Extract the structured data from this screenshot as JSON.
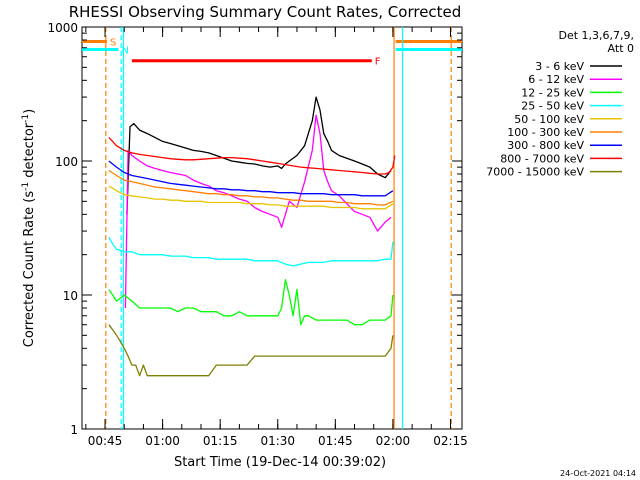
{
  "chart_data": {
    "type": "line",
    "title": "RHESSI Observing Summary Count Rates, Corrected",
    "xlabel": "Start Time (19-Dec-14 00:39:02)",
    "ylabel_main": "Corrected Count Rate (s",
    "ylabel_sup1": "-1",
    "ylabel_mid": " detector",
    "ylabel_sup2": "-1",
    "ylabel_end": ")",
    "y_scale": "log",
    "ylim": [
      1,
      1000
    ],
    "xlim_min": [
      39,
      138
    ],
    "x_ticks": [
      {
        "min": 45,
        "label": "00:45"
      },
      {
        "min": 60,
        "label": "01:00"
      },
      {
        "min": 75,
        "label": "01:15"
      },
      {
        "min": 90,
        "label": "01:30"
      },
      {
        "min": 105,
        "label": "01:45"
      },
      {
        "min": 120,
        "label": "02:00"
      },
      {
        "min": 135,
        "label": "02:15"
      }
    ],
    "y_ticks": [
      {
        "value": 1,
        "label": "1"
      },
      {
        "value": 10,
        "label": "10"
      },
      {
        "value": 100,
        "label": "100"
      },
      {
        "value": 1000,
        "label": "1000"
      }
    ],
    "legend": {
      "position": "top-right",
      "header_line1": "Det 1,3,6,7,9,",
      "header_line2": "Att 0"
    },
    "series": [
      {
        "name": "3 - 6 keV",
        "color": "#000000",
        "x": [
          50.7,
          51.5,
          52.5,
          54,
          56,
          58,
          60,
          62,
          64,
          66,
          68,
          70,
          72,
          74,
          76,
          78,
          80,
          82,
          84,
          86,
          88,
          90,
          91,
          92,
          93,
          95,
          97,
          99,
          100,
          101,
          102,
          103,
          104,
          106,
          108,
          110,
          112,
          114,
          116,
          118,
          119.5
        ],
        "y": [
          40,
          180,
          190,
          170,
          160,
          150,
          140,
          135,
          130,
          125,
          120,
          118,
          115,
          110,
          105,
          100,
          98,
          96,
          95,
          92,
          90,
          92,
          88,
          95,
          100,
          110,
          130,
          200,
          300,
          240,
          160,
          140,
          120,
          110,
          105,
          100,
          95,
          90,
          80,
          75,
          85
        ]
      },
      {
        "name": "6 - 12 keV",
        "color": "#ff00ff",
        "x": [
          50.3,
          51,
          52,
          54,
          56,
          58,
          60,
          62,
          64,
          66,
          68,
          70,
          72,
          74,
          76,
          78,
          80,
          82,
          84,
          86,
          88,
          90,
          91,
          92,
          93,
          95,
          97,
          99,
          100,
          101,
          102,
          103,
          104,
          106,
          108,
          110,
          112,
          114,
          116,
          118,
          119.5
        ],
        "y": [
          8,
          120,
          110,
          100,
          92,
          88,
          85,
          82,
          80,
          78,
          72,
          68,
          65,
          60,
          58,
          55,
          52,
          50,
          45,
          42,
          40,
          38,
          32,
          40,
          50,
          45,
          70,
          120,
          220,
          160,
          85,
          70,
          60,
          55,
          48,
          42,
          40,
          38,
          30,
          35,
          38
        ]
      },
      {
        "name": "12 - 25 keV",
        "color": "#00ff00",
        "x": [
          46,
          47,
          48,
          50,
          52,
          54,
          56,
          58,
          60,
          62,
          64,
          66,
          68,
          70,
          72,
          74,
          76,
          78,
          80,
          82,
          84,
          86,
          88,
          90,
          91,
          92,
          93,
          94,
          95,
          96,
          97,
          98,
          100,
          102,
          104,
          106,
          108,
          110,
          112,
          114,
          116,
          118,
          119.5,
          120
        ],
        "y": [
          11,
          10,
          9,
          10,
          9,
          8,
          8,
          8,
          8,
          8,
          7.5,
          8,
          8,
          7.5,
          7.5,
          7.5,
          7,
          7,
          7.5,
          7,
          7,
          7,
          7,
          7,
          8,
          13,
          10,
          7,
          11,
          6,
          7,
          7,
          6.5,
          6.5,
          6.5,
          6.5,
          6.5,
          6,
          6,
          6.5,
          6.5,
          6.5,
          7,
          10
        ]
      },
      {
        "name": "25 - 50 keV",
        "color": "#00ffff",
        "x": [
          46,
          47,
          48,
          50,
          52,
          54,
          56,
          58,
          60,
          62,
          64,
          66,
          68,
          70,
          72,
          74,
          76,
          78,
          80,
          82,
          84,
          86,
          88,
          90,
          92,
          94,
          96,
          98,
          100,
          102,
          104,
          106,
          108,
          110,
          112,
          114,
          116,
          118,
          119.5,
          120
        ],
        "y": [
          27,
          24,
          22,
          21,
          21,
          20,
          20,
          20,
          20,
          19.5,
          19.5,
          19.5,
          19,
          19,
          19,
          18.5,
          18.5,
          18.5,
          18.5,
          18.5,
          18,
          18,
          18,
          18,
          17,
          16.5,
          17,
          17.5,
          17.5,
          17.5,
          18,
          18,
          18,
          18,
          18,
          18,
          18,
          18.5,
          18.5,
          25
        ]
      },
      {
        "name": "50 - 100 keV",
        "color": "#e8c400",
        "x": [
          46,
          48,
          50,
          52,
          54,
          56,
          58,
          60,
          62,
          64,
          66,
          68,
          70,
          72,
          74,
          76,
          78,
          80,
          82,
          84,
          86,
          88,
          90,
          92,
          94,
          96,
          98,
          100,
          102,
          104,
          106,
          108,
          110,
          112,
          114,
          116,
          118,
          120
        ],
        "y": [
          65,
          60,
          56,
          55,
          54,
          53,
          52,
          52,
          51,
          51,
          50,
          50,
          50,
          49,
          49,
          49,
          49,
          49,
          48,
          48,
          48,
          47,
          47,
          46,
          46,
          46,
          46,
          46,
          46,
          45,
          45,
          45,
          45,
          44,
          44,
          44,
          44,
          48
        ]
      },
      {
        "name": "100 - 300 keV",
        "color": "#ff8000",
        "x": [
          46,
          48,
          50,
          52,
          54,
          56,
          58,
          60,
          62,
          64,
          66,
          68,
          70,
          72,
          74,
          76,
          78,
          80,
          82,
          84,
          86,
          88,
          90,
          92,
          94,
          96,
          98,
          100,
          102,
          104,
          106,
          108,
          110,
          112,
          114,
          116,
          118,
          120
        ],
        "y": [
          85,
          78,
          72,
          70,
          68,
          66,
          64,
          63,
          62,
          61,
          60,
          59,
          58,
          57,
          57,
          56,
          56,
          55,
          55,
          54,
          54,
          53,
          53,
          52,
          51,
          51,
          50,
          50,
          50,
          50,
          49,
          49,
          48,
          48,
          48,
          47,
          47,
          50
        ]
      },
      {
        "name": "300 - 800 keV",
        "color": "#0000ff",
        "x": [
          46,
          48,
          50,
          52,
          54,
          56,
          58,
          60,
          62,
          64,
          66,
          68,
          70,
          72,
          74,
          76,
          78,
          80,
          82,
          84,
          86,
          88,
          90,
          92,
          94,
          96,
          98,
          100,
          102,
          104,
          106,
          108,
          110,
          112,
          114,
          116,
          118,
          120
        ],
        "y": [
          100,
          90,
          82,
          78,
          76,
          74,
          72,
          70,
          68,
          67,
          66,
          65,
          64,
          63,
          62,
          62,
          61,
          61,
          60,
          60,
          59,
          59,
          58,
          58,
          58,
          57,
          57,
          57,
          57,
          56,
          56,
          56,
          56,
          55,
          55,
          55,
          55,
          60
        ]
      },
      {
        "name": "800 - 7000 keV",
        "color": "#ff0000",
        "x": [
          46,
          48,
          50,
          52,
          54,
          56,
          58,
          60,
          62,
          64,
          66,
          68,
          70,
          72,
          74,
          76,
          78,
          80,
          82,
          84,
          86,
          88,
          90,
          92,
          94,
          96,
          98,
          100,
          102,
          104,
          106,
          108,
          110,
          112,
          114,
          116,
          118,
          119,
          120,
          120.5
        ],
        "y": [
          150,
          130,
          120,
          115,
          112,
          110,
          108,
          106,
          104,
          103,
          102,
          102,
          103,
          104,
          105,
          106,
          106,
          105,
          104,
          102,
          100,
          98,
          96,
          94,
          92,
          90,
          89,
          88,
          87,
          86,
          85,
          84,
          83,
          82,
          81,
          80,
          80,
          82,
          90,
          110
        ]
      },
      {
        "name": "7000 - 15000 keV",
        "color": "#808000",
        "x": [
          46,
          47,
          48,
          49,
          50,
          51,
          52,
          53,
          54,
          55,
          56,
          58,
          60,
          62,
          64,
          66,
          68,
          70,
          72,
          74,
          76,
          78,
          80,
          82,
          84,
          86,
          88,
          90,
          92,
          94,
          96,
          98,
          100,
          102,
          104,
          106,
          108,
          110,
          112,
          114,
          116,
          118,
          119.5,
          120
        ],
        "y": [
          6,
          5.5,
          5,
          4.5,
          4,
          3.5,
          3,
          3,
          2.5,
          3,
          2.5,
          2.5,
          2.5,
          2.5,
          2.5,
          2.5,
          2.5,
          2.5,
          2.5,
          3,
          3,
          3,
          3,
          3,
          3.5,
          3.5,
          3.5,
          3.5,
          3.5,
          3.5,
          3.5,
          3.5,
          3.5,
          3.5,
          3.5,
          3.5,
          3.5,
          3.5,
          3.5,
          3.5,
          3.5,
          3.5,
          4,
          5
        ]
      }
    ],
    "flag_bars": [
      {
        "label": "S",
        "color": "#ff8000",
        "segments": [
          [
            39,
            45.5
          ],
          [
            120.7,
            138
          ]
        ],
        "y_value": 780
      },
      {
        "label": "N",
        "color": "#00ffff",
        "segments": [
          [
            39,
            48.5
          ],
          [
            120.7,
            138
          ]
        ],
        "y_value": 680
      },
      {
        "label": "F",
        "color": "#ff0000",
        "segments": [
          [
            52,
            114.5
          ]
        ],
        "y_value": 560
      }
    ],
    "vertical_lines": [
      {
        "min": 45.2,
        "color": "#ff8000",
        "dash": true
      },
      {
        "min": 49.2,
        "color": "#00ffff",
        "dash": true
      },
      {
        "min": 49.8,
        "color": "#00ffff",
        "dash": false
      },
      {
        "min": 120.3,
        "color": "#ff8000",
        "dash": false
      },
      {
        "min": 122.5,
        "color": "#00ffff",
        "dash": false
      },
      {
        "min": 135.2,
        "color": "#ff8000",
        "dash": true
      }
    ]
  },
  "footer": {
    "timestamp": "24-Oct-2021 04:14"
  }
}
